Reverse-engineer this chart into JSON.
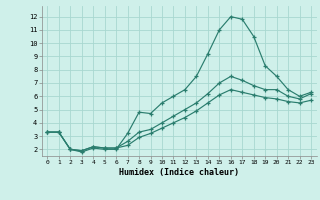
{
  "xlabel": "Humidex (Indice chaleur)",
  "bg_color": "#cff0ea",
  "grid_color": "#a8d8d0",
  "line_color": "#2a7d6e",
  "xlim": [
    -0.5,
    23.5
  ],
  "ylim": [
    1.5,
    12.8
  ],
  "xticks": [
    0,
    1,
    2,
    3,
    4,
    5,
    6,
    7,
    8,
    9,
    10,
    11,
    12,
    13,
    14,
    15,
    16,
    17,
    18,
    19,
    20,
    21,
    22,
    23
  ],
  "yticks": [
    2,
    3,
    4,
    5,
    6,
    7,
    8,
    9,
    10,
    11,
    12
  ],
  "line1_x": [
    0,
    1,
    2,
    3,
    4,
    5,
    6,
    7,
    8,
    9,
    10,
    11,
    12,
    13,
    14,
    15,
    16,
    17,
    18,
    19,
    20,
    21,
    22,
    23
  ],
  "line1_y": [
    3.3,
    3.3,
    2.0,
    1.8,
    2.1,
    2.0,
    2.0,
    3.2,
    4.8,
    4.7,
    5.5,
    6.0,
    6.5,
    7.5,
    9.2,
    11.0,
    12.0,
    11.8,
    10.5,
    8.3,
    7.5,
    6.5,
    6.0,
    6.3
  ],
  "line2_x": [
    0,
    1,
    2,
    3,
    4,
    5,
    6,
    7,
    8,
    9,
    10,
    11,
    12,
    13,
    14,
    15,
    16,
    17,
    18,
    19,
    20,
    21,
    22,
    23
  ],
  "line2_y": [
    3.3,
    3.3,
    2.0,
    1.9,
    2.2,
    2.1,
    2.1,
    2.6,
    3.3,
    3.5,
    4.0,
    4.5,
    5.0,
    5.5,
    6.2,
    7.0,
    7.5,
    7.2,
    6.8,
    6.5,
    6.5,
    6.0,
    5.8,
    6.2
  ],
  "line3_x": [
    0,
    1,
    2,
    3,
    4,
    5,
    6,
    7,
    8,
    9,
    10,
    11,
    12,
    13,
    14,
    15,
    16,
    17,
    18,
    19,
    20,
    21,
    22,
    23
  ],
  "line3_y": [
    3.3,
    3.3,
    2.0,
    1.9,
    2.2,
    2.1,
    2.1,
    2.3,
    2.9,
    3.2,
    3.6,
    4.0,
    4.4,
    4.9,
    5.5,
    6.1,
    6.5,
    6.3,
    6.1,
    5.9,
    5.8,
    5.6,
    5.5,
    5.7
  ]
}
